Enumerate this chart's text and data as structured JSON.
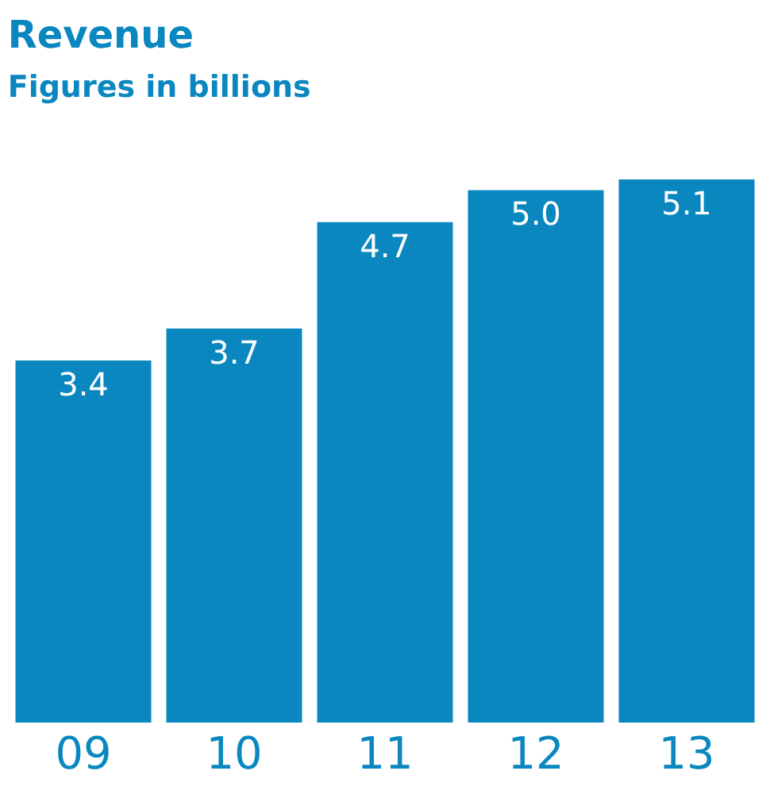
{
  "chart_data": {
    "type": "bar",
    "title": "Revenue",
    "subtitle": "Figures in billions",
    "categories": [
      "09",
      "10",
      "11",
      "12",
      "13"
    ],
    "values": [
      3.4,
      3.7,
      4.7,
      5.0,
      5.1
    ],
    "value_labels": [
      "3.4",
      "3.7",
      "4.7",
      "5.0",
      "5.1"
    ],
    "color": "#0a87bf",
    "legend": false
  }
}
